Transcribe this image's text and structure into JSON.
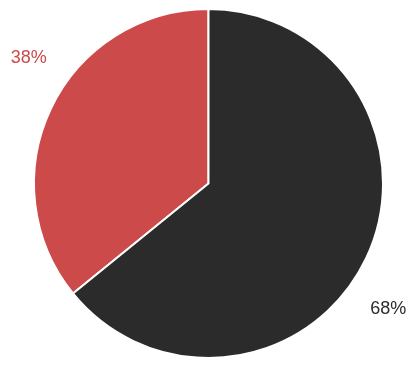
{
  "chart_data": {
    "type": "pie",
    "values": [
      38,
      68
    ],
    "value_labels": [
      "38%",
      "68%"
    ],
    "colors": [
      "#cc4a4a",
      "#2b2b2b"
    ],
    "data_labels": true
  }
}
